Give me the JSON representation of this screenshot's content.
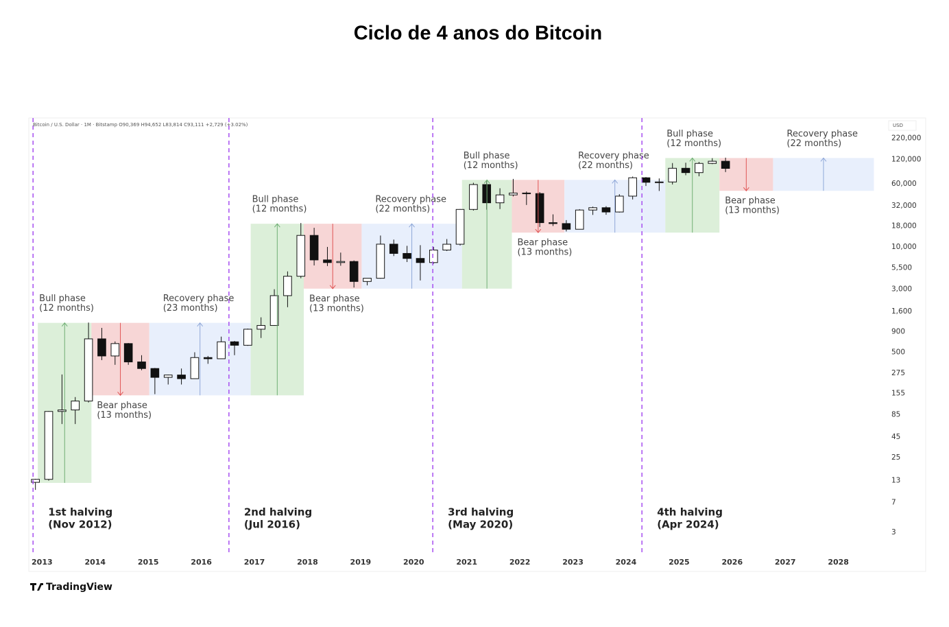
{
  "chart_data": {
    "type": "candlestick",
    "title": "Ciclo de 4 anos do Bitcoin",
    "symbol_info": "Bitcoin / U.S. Dollar · 1M · Bitstamp  O90,369  H94,652  L83,814  C93,111  +2,729 (+3.02%)",
    "currency": "USD",
    "brand": "TradingView",
    "log_scale": true,
    "xlim": [
      2012.75,
      2028.87
    ],
    "ylim": [
      1.7,
      390000
    ],
    "xticks": [
      2013,
      2014,
      2015,
      2016,
      2017,
      2018,
      2019,
      2020,
      2021,
      2022,
      2023,
      2024,
      2025,
      2026,
      2027,
      2028
    ],
    "yticks": [
      {
        "value": 220000,
        "label": "220,000"
      },
      {
        "value": 120000,
        "label": "120,000"
      },
      {
        "value": 60000,
        "label": "60,000"
      },
      {
        "value": 32000,
        "label": "32,000"
      },
      {
        "value": 18000,
        "label": "18,000"
      },
      {
        "value": 10000,
        "label": "10,000"
      },
      {
        "value": 5500,
        "label": "5,500"
      },
      {
        "value": 3000,
        "label": "3,000"
      },
      {
        "value": 1600,
        "label": "1,600"
      },
      900,
      500,
      275,
      155,
      85,
      45,
      25,
      13,
      7,
      3
    ],
    "up_color": "#ffffff",
    "down_color": "#111111",
    "x": [
      2012.875,
      2013.125,
      2013.375,
      2013.625,
      2013.875,
      2014.125,
      2014.375,
      2014.625,
      2014.875,
      2015.125,
      2015.375,
      2015.625,
      2015.875,
      2016.125,
      2016.375,
      2016.625,
      2016.875,
      2017.125,
      2017.375,
      2017.625,
      2017.875,
      2018.125,
      2018.375,
      2018.625,
      2018.875,
      2019.125,
      2019.375,
      2019.625,
      2019.875,
      2020.125,
      2020.375,
      2020.625,
      2020.875,
      2021.125,
      2021.375,
      2021.625,
      2021.875,
      2022.125,
      2022.375,
      2022.625,
      2022.875,
      2023.125,
      2023.375,
      2023.625,
      2023.875,
      2024.125,
      2024.375,
      2024.625,
      2024.875,
      2025.125,
      2025.375,
      2025.625,
      2025.875
    ],
    "open": [
      12.4,
      13.5,
      93,
      97,
      125,
      732,
      450,
      640,
      380,
      315,
      245,
      262,
      236,
      430,
      416,
      673,
      610,
      963,
      1071,
      2500,
      4340,
      13850,
      6900,
      6400,
      6600,
      3740,
      4100,
      10800,
      8300,
      7200,
      6400,
      9140,
      10780,
      28990,
      58800,
      35000,
      43800,
      46200,
      45500,
      19900,
      19400,
      16500,
      28500,
      30450,
      26950,
      42300,
      71300,
      62700,
      63300,
      93400,
      82500,
      107200,
      114000
    ],
    "high": [
      13.7,
      94,
      266,
      140,
      1163,
      1000,
      680,
      650,
      460,
      320,
      265,
      315,
      500,
      450,
      780,
      690,
      980,
      1350,
      3000,
      4980,
      19700,
      17200,
      9990,
      8500,
      6800,
      4100,
      13800,
      12300,
      10300,
      10500,
      10000,
      12500,
      29300,
      61800,
      64900,
      52900,
      69000,
      48200,
      47400,
      25200,
      21400,
      29200,
      31400,
      31800,
      44700,
      73800,
      72800,
      70000,
      108300,
      109300,
      111900,
      124500,
      126200
    ],
    "low": [
      10,
      13,
      65,
      65,
      120,
      400,
      350,
      350,
      300,
      152,
      200,
      200,
      235,
      360,
      415,
      460,
      600,
      750,
      1060,
      1800,
      4100,
      5900,
      5800,
      5850,
      3150,
      3350,
      4050,
      7700,
      6500,
      3850,
      6200,
      8900,
      10400,
      28100,
      28800,
      29300,
      42000,
      32900,
      17600,
      18100,
      15500,
      16500,
      24800,
      24900,
      26550,
      38500,
      56500,
      49000,
      58900,
      76600,
      74400,
      105100,
      83800
    ],
    "close": [
      13.5,
      93,
      97,
      125,
      732,
      450,
      640,
      380,
      315,
      245,
      262,
      236,
      430,
      416,
      673,
      610,
      963,
      1071,
      2500,
      4340,
      13850,
      6900,
      6400,
      6600,
      3740,
      4100,
      10800,
      8300,
      7200,
      6400,
      9140,
      10780,
      28990,
      58800,
      35000,
      43800,
      46200,
      45500,
      19900,
      19400,
      16500,
      28500,
      30450,
      26950,
      42300,
      71300,
      62700,
      63300,
      93400,
      82500,
      107200,
      114000,
      93100
    ],
    "phases": [
      {
        "name": "Bull phase",
        "duration": "(12 months)",
        "x": [
          2012.92,
          2013.93
        ],
        "y": [
          12.2,
          1153
        ],
        "color": "#dcefd9",
        "arrow_color": "#6fae74",
        "arrow": "up"
      },
      {
        "name": "Bear phase",
        "duration": "(13 months)",
        "x": [
          2013.93,
          2015.02
        ],
        "y": [
          147,
          1153
        ],
        "color": "#f7d6d6",
        "arrow_color": "#e05555",
        "arrow": "down"
      },
      {
        "name": "Recovery phase",
        "duration": "(23 months)",
        "x": [
          2015.02,
          2016.93
        ],
        "y": [
          147,
          1153
        ],
        "color": "#e8effc",
        "arrow_color": "#8fa8d8",
        "arrow": "up"
      },
      {
        "name": "Bull phase",
        "duration": "(12 months)",
        "x": [
          2016.93,
          2017.93
        ],
        "y": [
          147,
          19300
        ],
        "color": "#dcefd9",
        "arrow_color": "#6fae74",
        "arrow": "up"
      },
      {
        "name": "Bear phase",
        "duration": "(13 months)",
        "x": [
          2017.93,
          2019.02
        ],
        "y": [
          3050,
          19300
        ],
        "color": "#f7d6d6",
        "arrow_color": "#e05555",
        "arrow": "down"
      },
      {
        "name": "Recovery phase",
        "duration": "(22 months)",
        "x": [
          2019.02,
          2020.91
        ],
        "y": [
          3050,
          19300
        ],
        "color": "#e8effc",
        "arrow_color": "#8fa8d8",
        "arrow": "up"
      },
      {
        "name": "Bull phase",
        "duration": "(12 months)",
        "x": [
          2020.91,
          2021.85
        ],
        "y": [
          3050,
          67100
        ],
        "color": "#dcefd9",
        "arrow_color": "#6fae74",
        "arrow": "up"
      },
      {
        "name": "Bear phase",
        "duration": "(13 months)",
        "x": [
          2021.85,
          2022.84
        ],
        "y": [
          15000,
          67100
        ],
        "color": "#f7d6d6",
        "arrow_color": "#e05555",
        "arrow": "down"
      },
      {
        "name": "Recovery phase",
        "duration": "(22 months)",
        "x": [
          2022.84,
          2024.74
        ],
        "y": [
          15000,
          67100
        ],
        "color": "#e8effc",
        "arrow_color": "#8fa8d8",
        "arrow": "up"
      },
      {
        "name": "Bull phase",
        "duration": "(12 months)",
        "x": [
          2024.74,
          2025.76
        ],
        "y": [
          15000,
          125000
        ],
        "color": "#dcefd9",
        "arrow_color": "#6fae74",
        "arrow": "up"
      },
      {
        "name": "Bear phase",
        "duration": "(13 months)",
        "x": [
          2025.76,
          2026.77
        ],
        "y": [
          49200,
          125000
        ],
        "color": "#f7d6d6",
        "arrow_color": "#e05555",
        "arrow": "down"
      },
      {
        "name": "Recovery phase",
        "duration": "(22 months)",
        "x": [
          2026.77,
          2028.67
        ],
        "y": [
          49200,
          125000
        ],
        "color": "#e8effc",
        "arrow_color": "#8fa8d8",
        "arrow": "up"
      }
    ],
    "halving_color": "#a64df0",
    "halvings": [
      {
        "label": "1st halving",
        "date": "(Nov 2012)",
        "x": 2012.83
      },
      {
        "label": "2nd halving",
        "date": "(Jul 2016)",
        "x": 2016.52
      },
      {
        "label": "3rd halving",
        "date": "(May 2020)",
        "x": 2020.36
      },
      {
        "label": "4th halving",
        "date": "(Apr 2024)",
        "x": 2024.3
      }
    ]
  }
}
